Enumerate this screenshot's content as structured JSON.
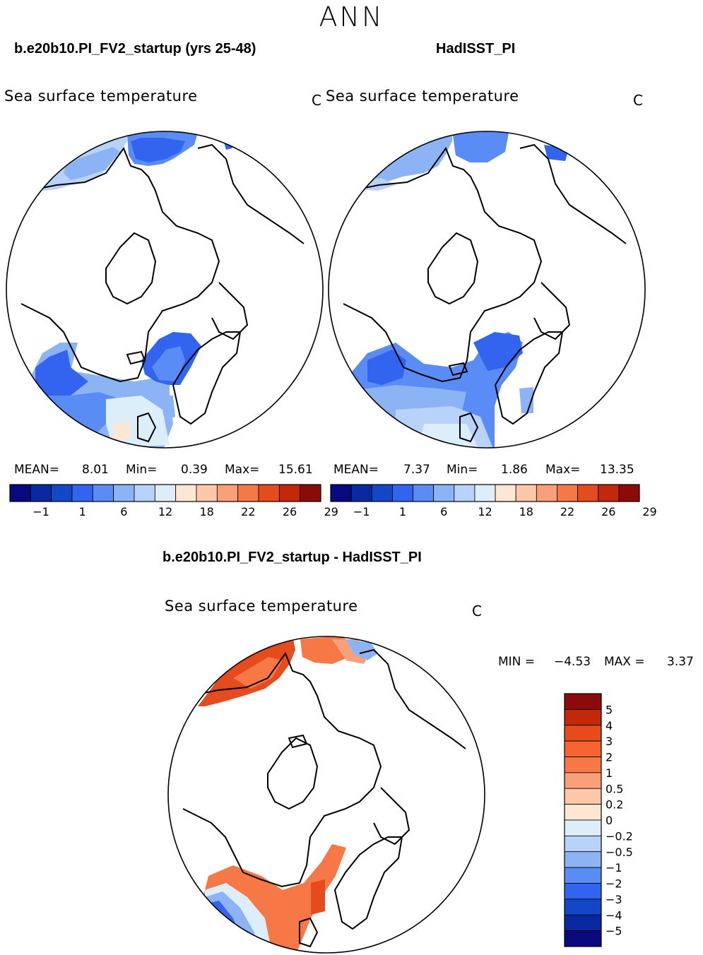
{
  "season": "ANN",
  "panels": [
    {
      "title": "b.e20b10.PI_FV2_startup (yrs 25-48)",
      "variable": "Sea surface temperature",
      "units": "C",
      "mean_label": "MEAN=",
      "mean": "8.01",
      "min_label": "Min=",
      "min": "0.39",
      "max_label": "Max=",
      "max": "15.61"
    },
    {
      "title": "HadISST_PI",
      "variable": "Sea surface temperature",
      "units": "C",
      "mean_label": "MEAN=",
      "mean": "7.37",
      "min_label": "Min=",
      "min": "1.86",
      "max_label": "Max=",
      "max": "13.35"
    }
  ],
  "diff_panel": {
    "title": "b.e20b10.PI_FV2_startup - HadISST_PI",
    "variable": "Sea surface temperature",
    "units": "C",
    "min_label": "MIN =",
    "min": "-4.53",
    "max_label": "MAX =",
    "max": "3.37"
  },
  "chart_data": [
    {
      "type": "heatmap",
      "projection": "north polar stereographic",
      "title": "b.e20b10.PI_FV2_startup (yrs 25-48)",
      "variable": "Sea surface temperature",
      "units": "C",
      "stats": {
        "mean": 8.01,
        "min": 0.39,
        "max": 15.61
      },
      "colorbar": {
        "orientation": "horizontal",
        "tick_labels": [
          "−1",
          "1",
          "6",
          "12",
          "18",
          "22",
          "26",
          "29"
        ],
        "colors": [
          "#0a0a80",
          "#0a28a0",
          "#1446c8",
          "#3264f0",
          "#5a8cf5",
          "#8cb4f5",
          "#b9d2fa",
          "#dceefa",
          "#fde6d2",
          "#fdc8aa",
          "#f9a07a",
          "#f57846",
          "#e64b1e",
          "#c3280a",
          "#8c0a0a"
        ]
      }
    },
    {
      "type": "heatmap",
      "projection": "north polar stereographic",
      "title": "HadISST_PI",
      "variable": "Sea surface temperature",
      "units": "C",
      "stats": {
        "mean": 7.37,
        "min": 1.86,
        "max": 13.35
      },
      "colorbar": {
        "orientation": "horizontal",
        "tick_labels": [
          "−1",
          "1",
          "6",
          "12",
          "18",
          "22",
          "26",
          "29"
        ],
        "colors": [
          "#0a0a80",
          "#0a28a0",
          "#1446c8",
          "#3264f0",
          "#5a8cf5",
          "#8cb4f5",
          "#b9d2fa",
          "#dceefa",
          "#fde6d2",
          "#fdc8aa",
          "#f9a07a",
          "#f57846",
          "#e64b1e",
          "#c3280a",
          "#8c0a0a"
        ]
      }
    },
    {
      "type": "heatmap",
      "projection": "north polar stereographic",
      "title": "b.e20b10.PI_FV2_startup - HadISST_PI",
      "variable": "Sea surface temperature",
      "units": "C",
      "stats": {
        "min": -4.53,
        "max": 3.37
      },
      "colorbar": {
        "orientation": "vertical",
        "tick_labels": [
          "5",
          "4",
          "3",
          "2",
          "1",
          "0.5",
          "0.2",
          "0",
          "−0.2",
          "−0.5",
          "−1",
          "−2",
          "−3",
          "−4",
          "−5"
        ],
        "colors": [
          "#8c0a0a",
          "#c3280a",
          "#e64b1e",
          "#f56432",
          "#f57846",
          "#f9a07a",
          "#fdc8aa",
          "#fde6d2",
          "#dceefa",
          "#b9d2fa",
          "#8cb4f5",
          "#5a8cf5",
          "#3264f0",
          "#1446c8",
          "#0a28a0",
          "#0a0a80"
        ]
      }
    }
  ],
  "colors": {
    "land_line": "#000000",
    "background": "#ffffff"
  }
}
